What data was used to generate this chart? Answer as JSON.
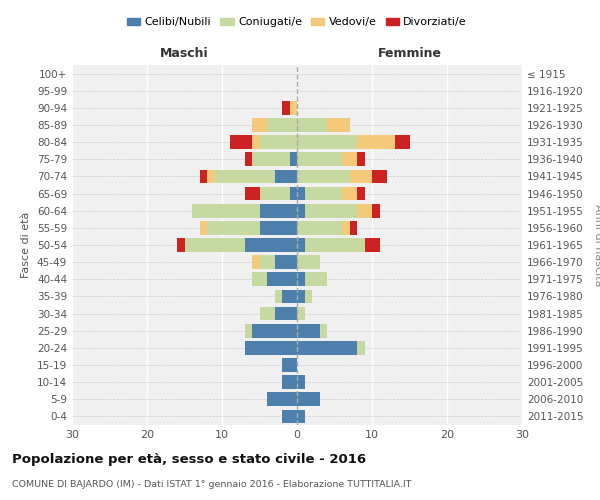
{
  "age_groups": [
    "0-4",
    "5-9",
    "10-14",
    "15-19",
    "20-24",
    "25-29",
    "30-34",
    "35-39",
    "40-44",
    "45-49",
    "50-54",
    "55-59",
    "60-64",
    "65-69",
    "70-74",
    "75-79",
    "80-84",
    "85-89",
    "90-94",
    "95-99",
    "100+"
  ],
  "birth_years": [
    "2011-2015",
    "2006-2010",
    "2001-2005",
    "1996-2000",
    "1991-1995",
    "1986-1990",
    "1981-1985",
    "1976-1980",
    "1971-1975",
    "1966-1970",
    "1961-1965",
    "1956-1960",
    "1951-1955",
    "1946-1950",
    "1941-1945",
    "1936-1940",
    "1931-1935",
    "1926-1930",
    "1921-1925",
    "1916-1920",
    "≤ 1915"
  ],
  "colors": {
    "celibe": "#4c7fab",
    "coniugato": "#c5d9a0",
    "vedovo": "#f5c97a",
    "divorziato": "#cc2222"
  },
  "males": {
    "celibe": [
      2,
      4,
      2,
      2,
      7,
      6,
      3,
      2,
      4,
      3,
      7,
      5,
      5,
      1,
      3,
      1,
      0,
      0,
      0,
      0,
      0
    ],
    "coniugato": [
      0,
      0,
      0,
      0,
      0,
      1,
      2,
      1,
      2,
      2,
      8,
      7,
      9,
      4,
      8,
      5,
      5,
      4,
      0,
      0,
      0
    ],
    "vedovo": [
      0,
      0,
      0,
      0,
      0,
      0,
      0,
      0,
      0,
      1,
      0,
      1,
      0,
      0,
      1,
      0,
      1,
      2,
      1,
      0,
      0
    ],
    "divorziato": [
      0,
      0,
      0,
      0,
      0,
      0,
      0,
      0,
      0,
      0,
      1,
      0,
      0,
      2,
      1,
      1,
      3,
      0,
      1,
      0,
      0
    ]
  },
  "females": {
    "celibe": [
      1,
      3,
      1,
      0,
      8,
      3,
      0,
      1,
      1,
      0,
      1,
      0,
      1,
      1,
      0,
      0,
      0,
      0,
      0,
      0,
      0
    ],
    "coniugato": [
      0,
      0,
      0,
      0,
      1,
      1,
      1,
      1,
      3,
      3,
      8,
      6,
      7,
      5,
      7,
      6,
      8,
      4,
      0,
      0,
      0
    ],
    "vedovo": [
      0,
      0,
      0,
      0,
      0,
      0,
      0,
      0,
      0,
      0,
      0,
      1,
      2,
      2,
      3,
      2,
      5,
      3,
      0,
      0,
      0
    ],
    "divorziato": [
      0,
      0,
      0,
      0,
      0,
      0,
      0,
      0,
      0,
      0,
      2,
      1,
      1,
      1,
      2,
      1,
      2,
      0,
      0,
      0,
      0
    ]
  },
  "xlim": 30,
  "title": "Popolazione per età, sesso e stato civile - 2016",
  "subtitle": "COMUNE DI BAJARDO (IM) - Dati ISTAT 1° gennaio 2016 - Elaborazione TUTTITALIA.IT",
  "xlabel_left": "Maschi",
  "xlabel_right": "Femmine",
  "ylabel_left": "Fasce di età",
  "ylabel_right": "Anni di nascita",
  "legend_labels": [
    "Celibi/Nubili",
    "Coniugati/e",
    "Vedovi/e",
    "Divorziati/e"
  ],
  "bg_color": "#ffffff",
  "plot_bg": "#f0f0f0"
}
